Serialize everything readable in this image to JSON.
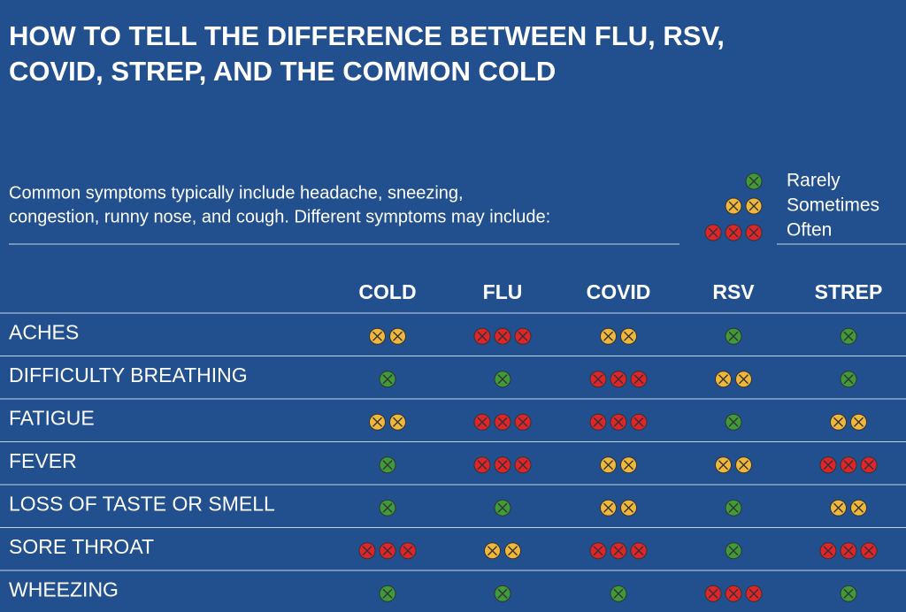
{
  "title_lines": [
    "HOW TO TELL THE DIFFERENCE BETWEEN FLU, RSV,",
    "COVID, STREP, AND THE COMMON COLD"
  ],
  "intro_lines": [
    "Common symptoms typically include headache, sneezing,",
    "congestion, runny nose, and cough. Different symptoms may include:"
  ],
  "legend": [
    {
      "label": "Rarely",
      "count": 1,
      "color": "#3f9a3a"
    },
    {
      "label": "Sometimes",
      "count": 2,
      "color": "#f0b83a"
    },
    {
      "label": "Often",
      "count": 3,
      "color": "#e0252a"
    }
  ],
  "table": {
    "columns": [
      "COLD",
      "FLU",
      "COVID",
      "RSV",
      "STREP"
    ],
    "rows": [
      {
        "label": "ACHES",
        "levels": [
          2,
          3,
          2,
          1,
          1
        ]
      },
      {
        "label": "DIFFICULTY BREATHING",
        "levels": [
          1,
          1,
          3,
          2,
          1
        ]
      },
      {
        "label": "FATIGUE",
        "levels": [
          2,
          3,
          3,
          1,
          2
        ]
      },
      {
        "label": "FEVER",
        "levels": [
          1,
          3,
          2,
          2,
          3
        ]
      },
      {
        "label": "LOSS OF TASTE OR SMELL",
        "levels": [
          1,
          1,
          2,
          1,
          2
        ]
      },
      {
        "label": "SORE THROAT",
        "levels": [
          3,
          2,
          3,
          1,
          3
        ]
      },
      {
        "label": "WHEEZING",
        "levels": [
          1,
          1,
          1,
          3,
          1
        ]
      }
    ]
  }
}
